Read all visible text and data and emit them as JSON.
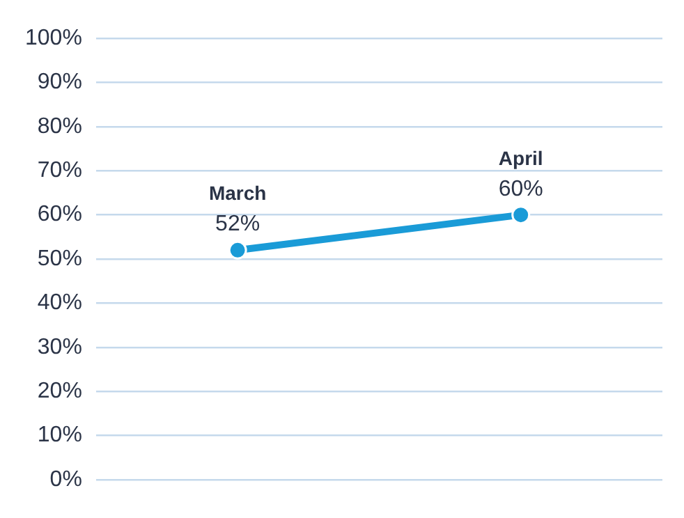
{
  "chart_data": {
    "type": "line",
    "categories": [
      "March",
      "April"
    ],
    "series": [
      {
        "color": "#1a9bd7",
        "values": [
          52,
          60
        ],
        "value_labels": [
          "52%",
          "60%"
        ]
      }
    ],
    "ylim": [
      0,
      100
    ],
    "yticks": [
      {
        "value": 0,
        "label": "0%"
      },
      {
        "value": 10,
        "label": "10%"
      },
      {
        "value": 20,
        "label": "20%"
      },
      {
        "value": 30,
        "label": "30%"
      },
      {
        "value": 40,
        "label": "40%"
      },
      {
        "value": 50,
        "label": "50%"
      },
      {
        "value": 60,
        "label": "60%"
      },
      {
        "value": 70,
        "label": "70%"
      },
      {
        "value": 80,
        "label": "80%"
      },
      {
        "value": 90,
        "label": "90%"
      },
      {
        "value": 100,
        "label": "100%"
      }
    ],
    "grid": "y",
    "tick_labels": "y",
    "marker": "circle",
    "line_style": "solid",
    "legend": false
  }
}
